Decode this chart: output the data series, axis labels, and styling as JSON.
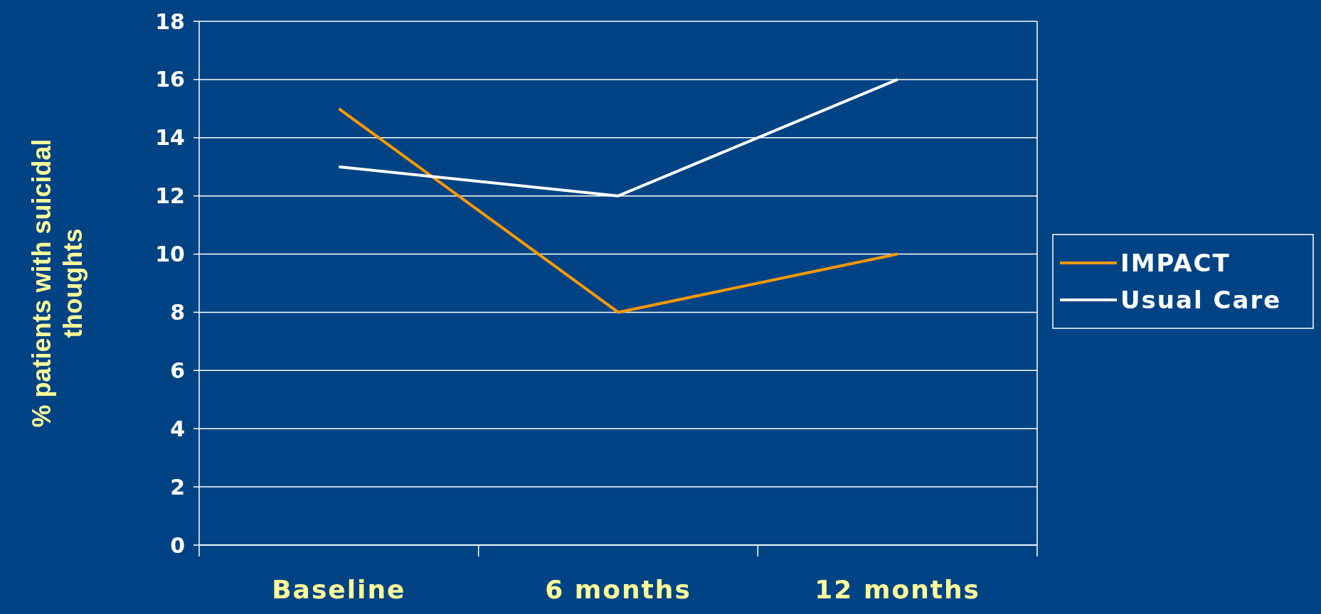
{
  "chart_data": {
    "type": "line",
    "ylabel": "% patients with suicidal thoughts",
    "categories": [
      "Baseline",
      "6 months",
      "12 months"
    ],
    "series": [
      {
        "name": "IMPACT",
        "color": "#ff9900",
        "values": [
          15,
          8,
          10
        ]
      },
      {
        "name": "Usual Care",
        "color": "#ffffff",
        "values": [
          13,
          12,
          16
        ]
      }
    ],
    "ylim": [
      0,
      18
    ],
    "yticks": [
      0,
      2,
      4,
      6,
      8,
      10,
      12,
      14,
      16,
      18
    ],
    "grid": "y",
    "legend": "right",
    "marker": "none",
    "line_style": "solid"
  }
}
